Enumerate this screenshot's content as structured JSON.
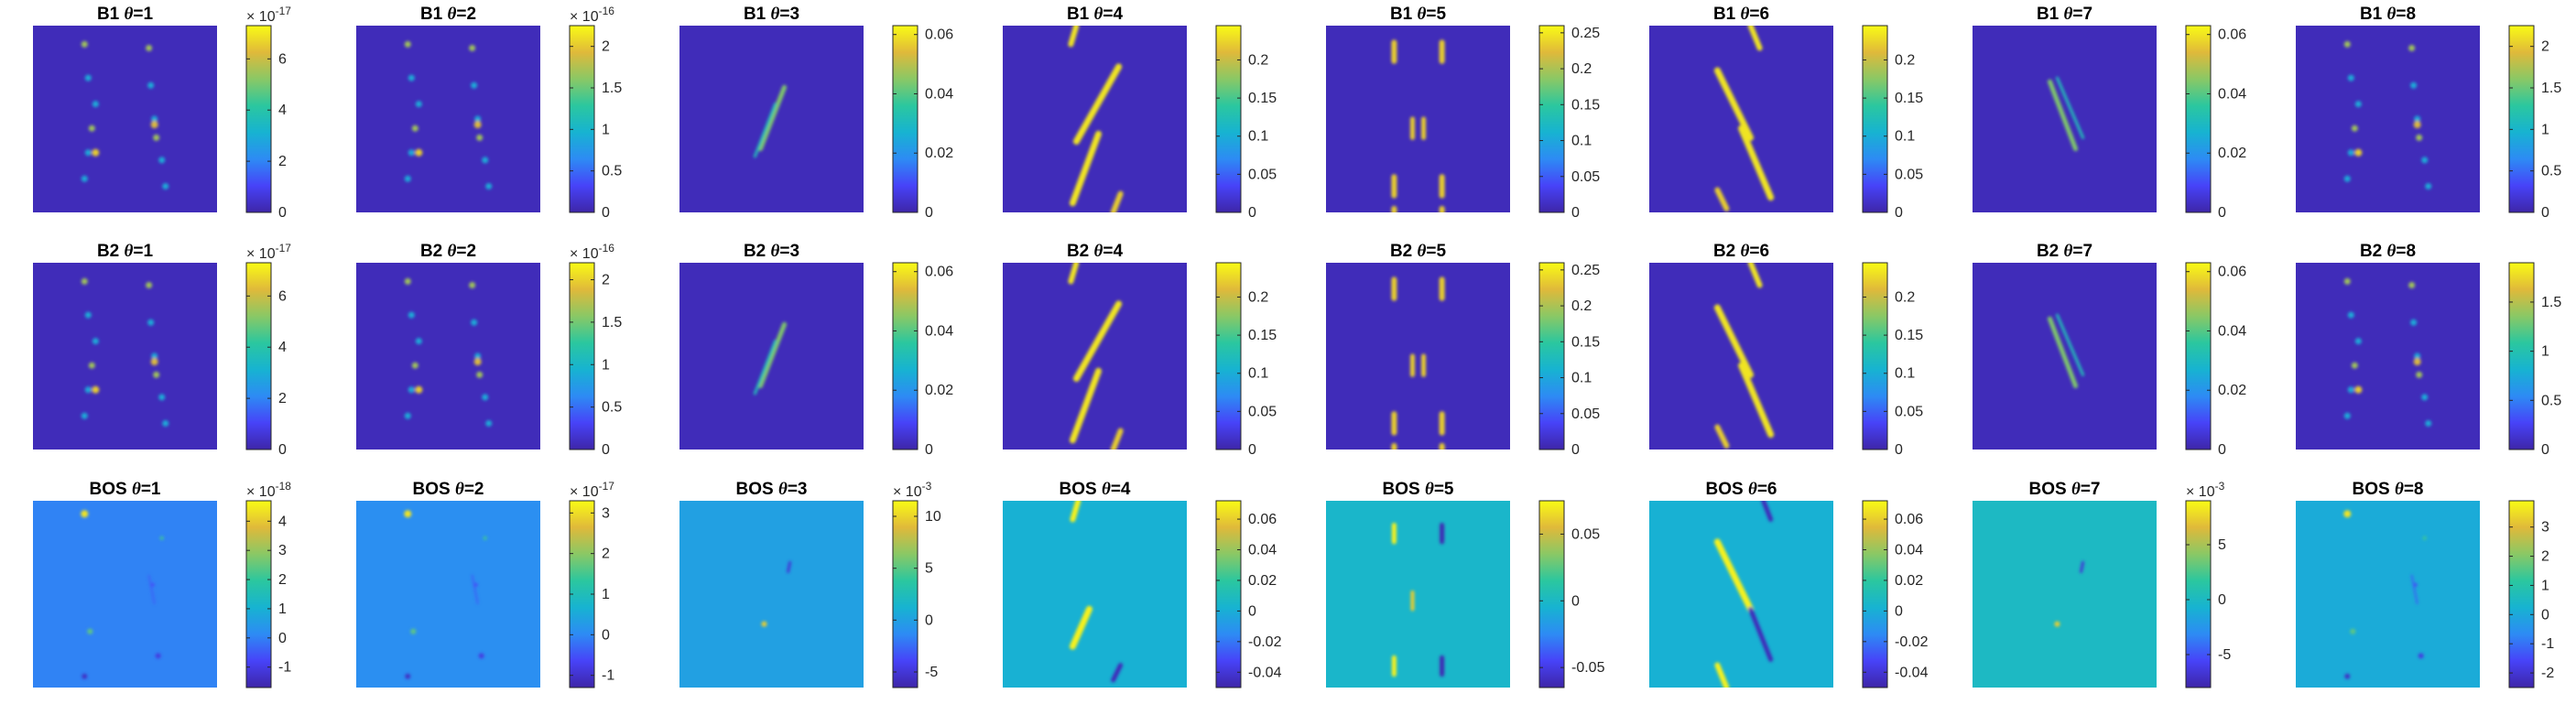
{
  "colors": {
    "parula": [
      "#3e26a8",
      "#4743f8",
      "#2d8bf4",
      "#17b3d1",
      "#2bc79f",
      "#8ac865",
      "#e0b93a",
      "#f9fb15"
    ],
    "grid_bg": "#ffffff"
  },
  "chart_data": [
    {
      "type": "heatmap",
      "row": "B1",
      "theta": "1",
      "title_prefix": "B1",
      "title_var": "θ",
      "title_eq": "=1",
      "colorbar": {
        "ticks": [
          "0",
          "2",
          "4",
          "6"
        ],
        "tick_values": [
          0,
          2,
          4,
          6
        ],
        "range": [
          0,
          7.3
        ],
        "exponent_base": "× 10",
        "exponent": "-17"
      },
      "background_level": 0.03,
      "pattern": "dots"
    },
    {
      "type": "heatmap",
      "row": "B1",
      "theta": "2",
      "title_prefix": "B1",
      "title_var": "θ",
      "title_eq": "=2",
      "colorbar": {
        "ticks": [
          "0",
          "0.5",
          "1",
          "1.5",
          "2"
        ],
        "tick_values": [
          0,
          0.5,
          1,
          1.5,
          2
        ],
        "range": [
          0,
          2.25
        ],
        "exponent_base": "× 10",
        "exponent": "-16"
      },
      "background_level": 0.03,
      "pattern": "dots"
    },
    {
      "type": "heatmap",
      "row": "B1",
      "theta": "3",
      "title_prefix": "B1",
      "title_var": "θ",
      "title_eq": "=3",
      "colorbar": {
        "ticks": [
          "0",
          "0.02",
          "0.04",
          "0.06"
        ],
        "tick_values": [
          0,
          0.02,
          0.04,
          0.06
        ],
        "range": [
          0,
          0.063
        ],
        "exponent_base": "",
        "exponent": ""
      },
      "background_level": 0.03,
      "pattern": "center-streak"
    },
    {
      "type": "heatmap",
      "row": "B1",
      "theta": "4",
      "title_prefix": "B1",
      "title_var": "θ",
      "title_eq": "=4",
      "colorbar": {
        "ticks": [
          "0",
          "0.05",
          "0.1",
          "0.15",
          "0.2"
        ],
        "tick_values": [
          0,
          0.05,
          0.1,
          0.15,
          0.2
        ],
        "range": [
          0,
          0.245
        ],
        "exponent_base": "",
        "exponent": ""
      },
      "background_level": 0.03,
      "pattern": "slant-right"
    },
    {
      "type": "heatmap",
      "row": "B1",
      "theta": "5",
      "title_prefix": "B1",
      "title_var": "θ",
      "title_eq": "=5",
      "colorbar": {
        "ticks": [
          "0",
          "0.05",
          "0.1",
          "0.15",
          "0.2",
          "0.25"
        ],
        "tick_values": [
          0,
          0.05,
          0.1,
          0.15,
          0.2,
          0.25
        ],
        "range": [
          0,
          0.26
        ],
        "exponent_base": "",
        "exponent": ""
      },
      "background_level": 0.03,
      "pattern": "vertical-pairs"
    },
    {
      "type": "heatmap",
      "row": "B1",
      "theta": "6",
      "title_prefix": "B1",
      "title_var": "θ",
      "title_eq": "=6",
      "colorbar": {
        "ticks": [
          "0",
          "0.05",
          "0.1",
          "0.15",
          "0.2"
        ],
        "tick_values": [
          0,
          0.05,
          0.1,
          0.15,
          0.2
        ],
        "range": [
          0,
          0.245
        ],
        "exponent_base": "",
        "exponent": ""
      },
      "background_level": 0.03,
      "pattern": "slant-left"
    },
    {
      "type": "heatmap",
      "row": "B1",
      "theta": "7",
      "title_prefix": "B1",
      "title_var": "θ",
      "title_eq": "=7",
      "colorbar": {
        "ticks": [
          "0",
          "0.02",
          "0.04",
          "0.06"
        ],
        "tick_values": [
          0,
          0.02,
          0.04,
          0.06
        ],
        "range": [
          0,
          0.063
        ],
        "exponent_base": "",
        "exponent": ""
      },
      "background_level": 0.03,
      "pattern": "center-streak-left"
    },
    {
      "type": "heatmap",
      "row": "B1",
      "theta": "8",
      "title_prefix": "B1",
      "title_var": "θ",
      "title_eq": "=8",
      "colorbar": {
        "ticks": [
          "0",
          "0.5",
          "1",
          "1.5",
          "2"
        ],
        "tick_values": [
          0,
          0.5,
          1,
          1.5,
          2
        ],
        "range": [
          0,
          2.25
        ],
        "exponent_base": "",
        "exponent": ""
      },
      "background_level": 0.03,
      "pattern": "dots"
    },
    {
      "type": "heatmap",
      "row": "B2",
      "theta": "1",
      "title_prefix": "B2",
      "title_var": "θ",
      "title_eq": "=1",
      "colorbar": {
        "ticks": [
          "0",
          "2",
          "4",
          "6"
        ],
        "tick_values": [
          0,
          2,
          4,
          6
        ],
        "range": [
          0,
          7.3
        ],
        "exponent_base": "× 10",
        "exponent": "-17"
      },
      "background_level": 0.03,
      "pattern": "dots"
    },
    {
      "type": "heatmap",
      "row": "B2",
      "theta": "2",
      "title_prefix": "B2",
      "title_var": "θ",
      "title_eq": "=2",
      "colorbar": {
        "ticks": [
          "0",
          "0.5",
          "1",
          "1.5",
          "2"
        ],
        "tick_values": [
          0,
          0.5,
          1,
          1.5,
          2
        ],
        "range": [
          0,
          2.2
        ],
        "exponent_base": "× 10",
        "exponent": "-16"
      },
      "background_level": 0.03,
      "pattern": "dots"
    },
    {
      "type": "heatmap",
      "row": "B2",
      "theta": "3",
      "title_prefix": "B2",
      "title_var": "θ",
      "title_eq": "=3",
      "colorbar": {
        "ticks": [
          "0",
          "0.02",
          "0.04",
          "0.06"
        ],
        "tick_values": [
          0,
          0.02,
          0.04,
          0.06
        ],
        "range": [
          0,
          0.063
        ],
        "exponent_base": "",
        "exponent": ""
      },
      "background_level": 0.03,
      "pattern": "center-streak"
    },
    {
      "type": "heatmap",
      "row": "B2",
      "theta": "4",
      "title_prefix": "B2",
      "title_var": "θ",
      "title_eq": "=4",
      "colorbar": {
        "ticks": [
          "0",
          "0.05",
          "0.1",
          "0.15",
          "0.2"
        ],
        "tick_values": [
          0,
          0.05,
          0.1,
          0.15,
          0.2
        ],
        "range": [
          0,
          0.245
        ],
        "exponent_base": "",
        "exponent": ""
      },
      "background_level": 0.03,
      "pattern": "slant-right"
    },
    {
      "type": "heatmap",
      "row": "B2",
      "theta": "5",
      "title_prefix": "B2",
      "title_var": "θ",
      "title_eq": "=5",
      "colorbar": {
        "ticks": [
          "0",
          "0.05",
          "0.1",
          "0.15",
          "0.2",
          "0.25"
        ],
        "tick_values": [
          0,
          0.05,
          0.1,
          0.15,
          0.2,
          0.25
        ],
        "range": [
          0,
          0.26
        ],
        "exponent_base": "",
        "exponent": ""
      },
      "background_level": 0.03,
      "pattern": "vertical-pairs"
    },
    {
      "type": "heatmap",
      "row": "B2",
      "theta": "6",
      "title_prefix": "B2",
      "title_var": "θ",
      "title_eq": "=6",
      "colorbar": {
        "ticks": [
          "0",
          "0.05",
          "0.1",
          "0.15",
          "0.2"
        ],
        "tick_values": [
          0,
          0.05,
          0.1,
          0.15,
          0.2
        ],
        "range": [
          0,
          0.245
        ],
        "exponent_base": "",
        "exponent": ""
      },
      "background_level": 0.03,
      "pattern": "slant-left"
    },
    {
      "type": "heatmap",
      "row": "B2",
      "theta": "7",
      "title_prefix": "B2",
      "title_var": "θ",
      "title_eq": "=7",
      "colorbar": {
        "ticks": [
          "0",
          "0.02",
          "0.04",
          "0.06"
        ],
        "tick_values": [
          0,
          0.02,
          0.04,
          0.06
        ],
        "range": [
          0,
          0.063
        ],
        "exponent_base": "",
        "exponent": ""
      },
      "background_level": 0.03,
      "pattern": "center-streak-left"
    },
    {
      "type": "heatmap",
      "row": "B2",
      "theta": "8",
      "title_prefix": "B2",
      "title_var": "θ",
      "title_eq": "=8",
      "colorbar": {
        "ticks": [
          "0",
          "0.5",
          "1",
          "1.5"
        ],
        "tick_values": [
          0,
          0.5,
          1,
          1.5
        ],
        "range": [
          0,
          1.9
        ],
        "exponent_base": "",
        "exponent": ""
      },
      "background_level": 0.03,
      "pattern": "dots"
    },
    {
      "type": "heatmap",
      "row": "BOS",
      "theta": "1",
      "title_prefix": "BOS",
      "title_var": "θ",
      "title_eq": "=1",
      "colorbar": {
        "ticks": [
          "-1",
          "0",
          "1",
          "2",
          "3",
          "4"
        ],
        "tick_values": [
          -1,
          0,
          1,
          2,
          3,
          4
        ],
        "range": [
          -1.7,
          4.7
        ],
        "exponent_base": "× 10",
        "exponent": "-18"
      },
      "background_level": 0.27,
      "pattern": "signed-dots"
    },
    {
      "type": "heatmap",
      "row": "BOS",
      "theta": "2",
      "title_prefix": "BOS",
      "title_var": "θ",
      "title_eq": "=2",
      "colorbar": {
        "ticks": [
          "-1",
          "0",
          "1",
          "2",
          "3"
        ],
        "tick_values": [
          -1,
          0,
          1,
          2,
          3
        ],
        "range": [
          -1.3,
          3.3
        ],
        "exponent_base": "× 10",
        "exponent": "-17"
      },
      "background_level": 0.3,
      "pattern": "signed-dots"
    },
    {
      "type": "heatmap",
      "row": "BOS",
      "theta": "3",
      "title_prefix": "BOS",
      "title_var": "θ",
      "title_eq": "=3",
      "colorbar": {
        "ticks": [
          "-5",
          "0",
          "5",
          "10"
        ],
        "tick_values": [
          -5,
          0,
          5,
          10
        ],
        "range": [
          -6.5,
          11.5
        ],
        "exponent_base": "× 10",
        "exponent": "-3"
      },
      "background_level": 0.36,
      "pattern": "signed-center"
    },
    {
      "type": "heatmap",
      "row": "BOS",
      "theta": "4",
      "title_prefix": "BOS",
      "title_var": "θ",
      "title_eq": "=4",
      "colorbar": {
        "ticks": [
          "-0.04",
          "-0.02",
          "0",
          "0.02",
          "0.04",
          "0.06"
        ],
        "tick_values": [
          -0.04,
          -0.02,
          0,
          0.02,
          0.04,
          0.06
        ],
        "range": [
          -0.05,
          0.072
        ],
        "exponent_base": "",
        "exponent": ""
      },
      "background_level": 0.42,
      "pattern": "signed-slant-right"
    },
    {
      "type": "heatmap",
      "row": "BOS",
      "theta": "5",
      "title_prefix": "BOS",
      "title_var": "θ",
      "title_eq": "=5",
      "colorbar": {
        "ticks": [
          "-0.05",
          "0",
          "0.05"
        ],
        "tick_values": [
          -0.05,
          0,
          0.05
        ],
        "range": [
          -0.065,
          0.075
        ],
        "exponent_base": "",
        "exponent": ""
      },
      "background_level": 0.45,
      "pattern": "signed-vertical"
    },
    {
      "type": "heatmap",
      "row": "BOS",
      "theta": "6",
      "title_prefix": "BOS",
      "title_var": "θ",
      "title_eq": "=6",
      "colorbar": {
        "ticks": [
          "-0.04",
          "-0.02",
          "0",
          "0.02",
          "0.04",
          "0.06"
        ],
        "tick_values": [
          -0.04,
          -0.02,
          0,
          0.02,
          0.04,
          0.06
        ],
        "range": [
          -0.05,
          0.072
        ],
        "exponent_base": "",
        "exponent": ""
      },
      "background_level": 0.42,
      "pattern": "signed-slant-left"
    },
    {
      "type": "heatmap",
      "row": "BOS",
      "theta": "7",
      "title_prefix": "BOS",
      "title_var": "θ",
      "title_eq": "=7",
      "colorbar": {
        "ticks": [
          "-5",
          "0",
          "5"
        ],
        "tick_values": [
          -5,
          0,
          5
        ],
        "range": [
          -8,
          9
        ],
        "exponent_base": "× 10",
        "exponent": "-3"
      },
      "background_level": 0.47,
      "pattern": "signed-center"
    },
    {
      "type": "heatmap",
      "row": "BOS",
      "theta": "8",
      "title_prefix": "BOS",
      "title_var": "θ",
      "title_eq": "=8",
      "colorbar": {
        "ticks": [
          "-2",
          "-1",
          "0",
          "1",
          "2",
          "3"
        ],
        "tick_values": [
          -2,
          -1,
          0,
          1,
          2,
          3
        ],
        "range": [
          -2.5,
          3.9
        ],
        "exponent_base": "",
        "exponent": ""
      },
      "background_level": 0.4,
      "pattern": "signed-dots"
    }
  ]
}
